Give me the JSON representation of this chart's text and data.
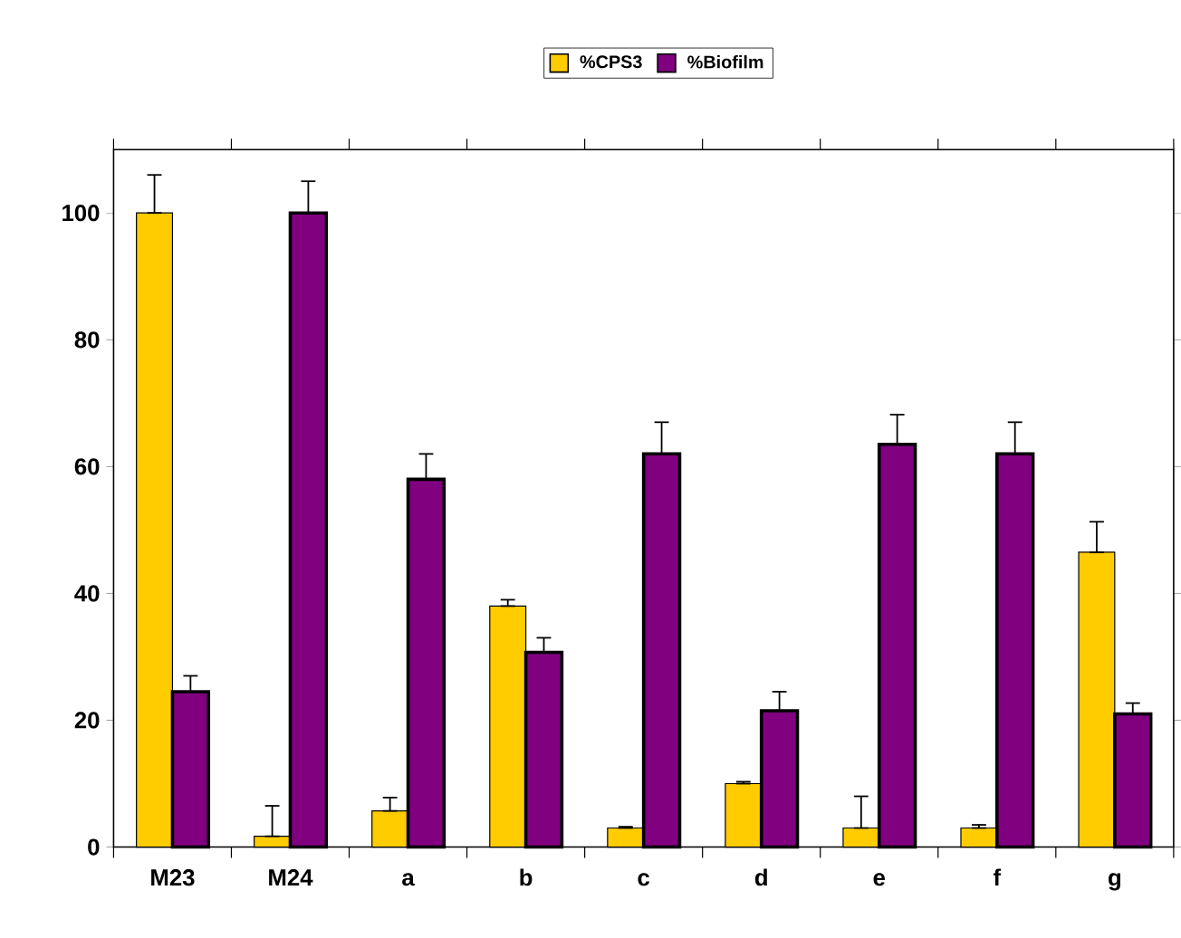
{
  "chart_data": {
    "type": "bar",
    "categories": [
      "M23",
      "M24",
      "a",
      "b",
      "c",
      "d",
      "e",
      "f",
      "g"
    ],
    "series": [
      {
        "name": "%CPS3",
        "color": "#ffcc00",
        "values": [
          100,
          1.7,
          5.7,
          38,
          3,
          10,
          3,
          3,
          46.5
        ],
        "errors": [
          [
            100,
            106
          ],
          [
            1.7,
            6.5
          ],
          [
            5.7,
            7.8
          ],
          [
            38,
            39
          ],
          [
            3,
            3.2
          ],
          [
            10,
            10.3
          ],
          [
            3,
            8
          ],
          [
            3,
            3.5
          ],
          [
            46.5,
            51.3
          ]
        ]
      },
      {
        "name": "%Biofilm",
        "color": "#800080",
        "values": [
          24.5,
          100,
          58,
          30.7,
          62,
          21.5,
          63.5,
          62,
          21
        ],
        "errors": [
          [
            24.5,
            27
          ],
          [
            100,
            105
          ],
          [
            58,
            62
          ],
          [
            30.7,
            33
          ],
          [
            62,
            67
          ],
          [
            21.5,
            24.5
          ],
          [
            63.5,
            68.2
          ],
          [
            62,
            67
          ],
          [
            21,
            22.7
          ]
        ]
      }
    ],
    "ylim": [
      0,
      110
    ],
    "yticks": [
      0,
      20,
      40,
      60,
      80,
      100
    ],
    "grid": false,
    "legend": "top"
  }
}
